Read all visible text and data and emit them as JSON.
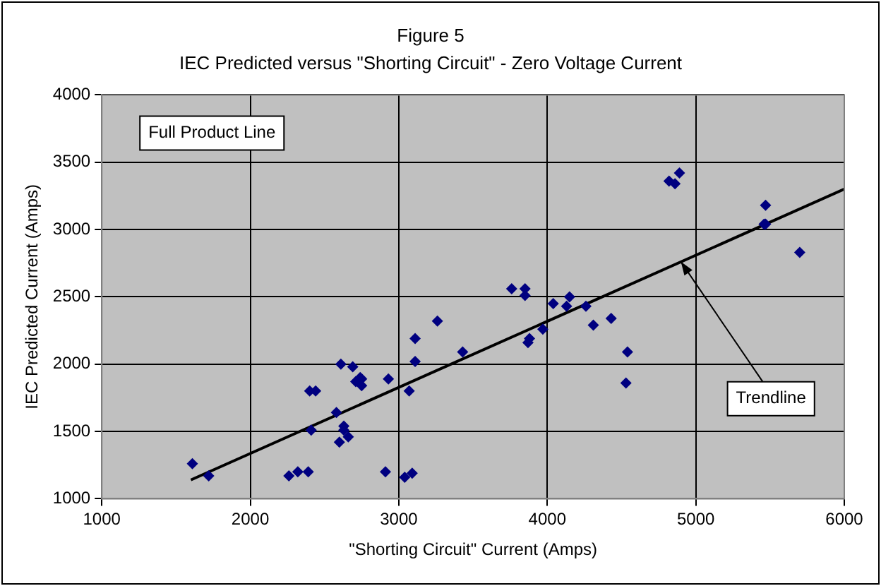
{
  "chart_data": {
    "type": "scatter",
    "title": "Figure 5",
    "subtitle": "IEC Predicted versus \"Shorting Circuit\" - Zero Voltage Current",
    "xlabel": "\"Shorting Circuit\" Current (Amps)",
    "ylabel": "IEC Predicted Current (Amps)",
    "xlim": [
      1000,
      6000
    ],
    "xticks": [
      1000,
      2000,
      3000,
      4000,
      5000,
      6000
    ],
    "ylim": [
      1000,
      4000
    ],
    "yticks": [
      1000,
      1500,
      2000,
      2500,
      3000,
      3500,
      4000
    ],
    "grid": true,
    "legend": false,
    "series": [
      {
        "type": "scatter",
        "marker": "diamond",
        "color": "#000080",
        "x": [
          1610,
          1720,
          2260,
          2320,
          2390,
          2400,
          2440,
          2410,
          2580,
          2610,
          2600,
          2630,
          2630,
          2660,
          2690,
          2710,
          2740,
          2750,
          2750,
          2910,
          2930,
          3040,
          3070,
          3090,
          3110,
          3110,
          3260,
          3430,
          3760,
          3850,
          3850,
          3880,
          3870,
          3970,
          4040,
          4130,
          4150,
          4260,
          4310,
          4430,
          4540,
          4530,
          4820,
          4860,
          4890,
          5470,
          5460,
          5470,
          5700
        ],
        "values": [
          1260,
          1170,
          1170,
          1200,
          1200,
          1800,
          1800,
          1510,
          1640,
          2000,
          1420,
          1540,
          1510,
          1460,
          1980,
          1870,
          1900,
          1840,
          1890,
          1200,
          1890,
          1160,
          1800,
          1190,
          2020,
          2190,
          2320,
          2090,
          2560,
          2560,
          2510,
          2190,
          2160,
          2260,
          2450,
          2430,
          2500,
          2430,
          2290,
          2340,
          2090,
          1860,
          3360,
          3340,
          3420,
          3180,
          3040,
          3040,
          2830
        ]
      },
      {
        "type": "line",
        "marker": "none",
        "color": "#000000",
        "x": [
          1600,
          6000
        ],
        "values": [
          1140,
          3300
        ]
      }
    ],
    "annotations": [
      "Full Product Line",
      {
        "text": "Trendline",
        "x": 4900,
        "y": 2760
      }
    ]
  }
}
